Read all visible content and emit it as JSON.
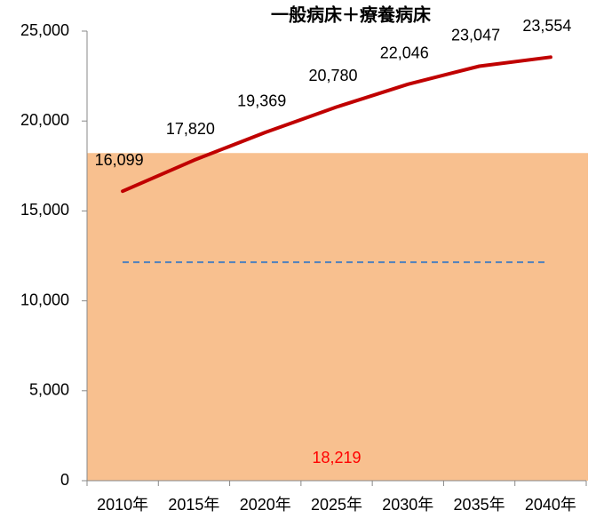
{
  "chart_data": {
    "type": "line",
    "title": "一般病床＋療養病床",
    "categories": [
      "2010年",
      "2015年",
      "2020年",
      "2025年",
      "2030年",
      "2035年",
      "2040年"
    ],
    "series": [
      {
        "color": "#c00000",
        "values": [
          16099,
          17820,
          19369,
          20780,
          22046,
          23047,
          23554
        ],
        "value_labels": [
          "16,099",
          "17,820",
          "19,369",
          "20,780",
          "22,046",
          "23,047",
          "23,554"
        ]
      }
    ],
    "band": {
      "value": 18219,
      "value_label": "18,219",
      "color": "#f8c08f",
      "label_color": "#ff0000"
    },
    "reference_line": {
      "value": 12150,
      "color": "#4f81bd"
    },
    "ylim": [
      0,
      25000
    ],
    "yticks": [
      {
        "value": 0,
        "label": "0"
      },
      {
        "value": 5000,
        "label": "5,000"
      },
      {
        "value": 10000,
        "label": "10,000"
      },
      {
        "value": 15000,
        "label": "15,000"
      },
      {
        "value": 20000,
        "label": "20,000"
      },
      {
        "value": 25000,
        "label": "25,000"
      }
    ],
    "grid": false
  }
}
